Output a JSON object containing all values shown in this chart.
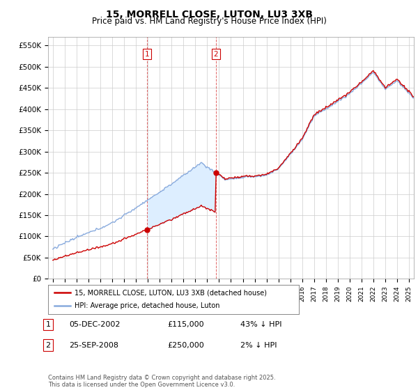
{
  "title": "15, MORRELL CLOSE, LUTON, LU3 3XB",
  "subtitle": "Price paid vs. HM Land Registry's House Price Index (HPI)",
  "ylim": [
    0,
    570000
  ],
  "yticks": [
    0,
    50000,
    100000,
    150000,
    200000,
    250000,
    300000,
    350000,
    400000,
    450000,
    500000,
    550000
  ],
  "ytick_labels": [
    "£0",
    "£50K",
    "£100K",
    "£150K",
    "£200K",
    "£250K",
    "£300K",
    "£350K",
    "£400K",
    "£450K",
    "£500K",
    "£550K"
  ],
  "line1_color": "#cc0000",
  "line2_color": "#88aadd",
  "fill_color": "#ddeeff",
  "annotation1": {
    "label": "1",
    "date": "05-DEC-2002",
    "price": "£115,000",
    "hpi": "43% ↓ HPI"
  },
  "annotation2": {
    "label": "2",
    "date": "25-SEP-2008",
    "price": "£250,000",
    "hpi": "2% ↓ HPI"
  },
  "legend1": "15, MORRELL CLOSE, LUTON, LU3 3XB (detached house)",
  "legend2": "HPI: Average price, detached house, Luton",
  "footer": "Contains HM Land Registry data © Crown copyright and database right 2025.\nThis data is licensed under the Open Government Licence v3.0.",
  "sale1_year": 2002.92,
  "sale1_price": 115000,
  "sale2_year": 2008.73,
  "sale2_price": 250000
}
